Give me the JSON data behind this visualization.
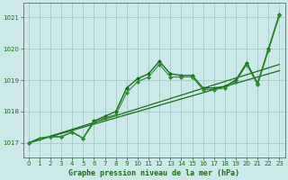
{
  "title": "Graphe pression niveau de la mer (hPa)",
  "background_color": "#cce8e8",
  "grid_color": "#aacccc",
  "xlim": [
    -0.5,
    23.5
  ],
  "ylim": [
    1016.55,
    1021.45
  ],
  "yticks": [
    1017,
    1018,
    1019,
    1020,
    1021
  ],
  "xticks": [
    0,
    1,
    2,
    3,
    4,
    5,
    6,
    7,
    8,
    9,
    10,
    11,
    12,
    13,
    14,
    15,
    16,
    17,
    18,
    19,
    20,
    21,
    22,
    23
  ],
  "series": [
    {
      "x": [
        0,
        23
      ],
      "y": [
        1017.0,
        1019.3
      ],
      "color": "#1a6b1a",
      "lw": 0.9,
      "marker": null,
      "ls": "-"
    },
    {
      "x": [
        0,
        23
      ],
      "y": [
        1017.0,
        1019.5
      ],
      "color": "#1a6b1a",
      "lw": 0.9,
      "marker": null,
      "ls": "-"
    },
    {
      "x": [
        0,
        1,
        2,
        3,
        4,
        5,
        6,
        7,
        8,
        9,
        10,
        11,
        12,
        13,
        14,
        15,
        16,
        17,
        18,
        19,
        20,
        21,
        22,
        23
      ],
      "y": [
        1017.0,
        1017.15,
        1017.2,
        1017.2,
        1017.35,
        1017.15,
        1017.7,
        1017.85,
        1018.0,
        1018.75,
        1019.05,
        1019.2,
        1019.6,
        1019.2,
        1019.15,
        1019.15,
        1018.75,
        1018.75,
        1018.8,
        1019.0,
        1019.55,
        1018.9,
        1020.0,
        1021.1
      ],
      "color": "#1a6b1a",
      "lw": 1.0,
      "marker": "D",
      "ms": 2.0,
      "ls": "-"
    },
    {
      "x": [
        0,
        1,
        2,
        3,
        4,
        5,
        6,
        7,
        8,
        9,
        10,
        11,
        12,
        13,
        14,
        15,
        16,
        17,
        18,
        19,
        20,
        21,
        22,
        23
      ],
      "y": [
        1017.0,
        1017.15,
        1017.2,
        1017.2,
        1017.35,
        1017.15,
        1017.65,
        1017.8,
        1017.9,
        1018.6,
        1018.95,
        1019.1,
        1019.5,
        1019.1,
        1019.1,
        1019.1,
        1018.7,
        1018.7,
        1018.75,
        1018.95,
        1019.5,
        1018.85,
        1019.95,
        1021.05
      ],
      "color": "#2d8c2d",
      "lw": 0.8,
      "marker": "D",
      "ms": 2.0,
      "ls": "-"
    }
  ]
}
